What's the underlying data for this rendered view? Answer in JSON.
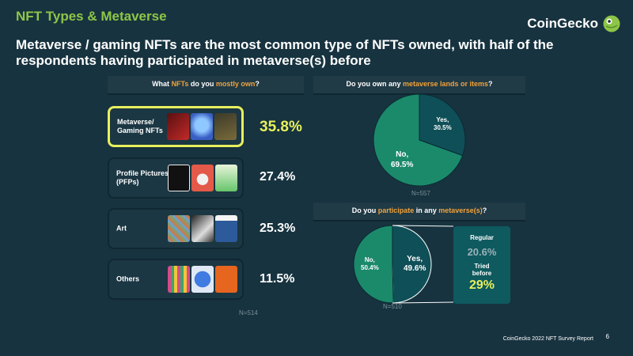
{
  "section_title": "NFT Types & Metaverse",
  "brand": {
    "name": "CoinGecko"
  },
  "headline": "Metaverse / gaming NFTs are the most common type of NFTs owned, with half of the respondents having participated in metaverse(s) before",
  "colors": {
    "accent_green": "#8dc647",
    "highlight_yellow": "#e7f05c",
    "question_highlight": "#f2a23a",
    "pie_green": "#1b8a6b",
    "pie_teal": "#0f4f57"
  },
  "q1": {
    "prefix": "What ",
    "hl1": "NFTs",
    "mid": " do you ",
    "hl2": "mostly own",
    "suffix": "?"
  },
  "q2": {
    "prefix": "Do you own any ",
    "hl1": "metaverse lands or items",
    "suffix": "?"
  },
  "q3": {
    "prefix": "Do you ",
    "hl1": "participate",
    "mid": " in any ",
    "hl2": "metaverse(s)",
    "suffix": "?"
  },
  "footer": "CoinGecko 2022 NFT Survey Report",
  "page_number": "6",
  "chart_data": [
    {
      "type": "bar",
      "title": "What NFTs do you mostly own?",
      "categories": [
        "Metaverse/ Gaming NFTs",
        "Profile Pictures (PFPs)",
        "Art",
        "Others"
      ],
      "values": [
        35.8,
        27.4,
        25.3,
        11.5
      ],
      "value_labels": [
        "35.8%",
        "27.4%",
        "25.3%",
        "11.5%"
      ],
      "sample": "N=514"
    },
    {
      "type": "pie",
      "title": "Do you own any metaverse lands or items?",
      "categories": [
        "Yes,",
        "No,"
      ],
      "values": [
        30.5,
        69.5
      ],
      "value_labels": [
        "30.5%",
        "69.5%"
      ],
      "sample": "N=557"
    },
    {
      "type": "pie",
      "title": "Do you participate in any metaverse(s)?",
      "categories": [
        "No,",
        "Yes,"
      ],
      "values": [
        50.4,
        49.6
      ],
      "value_labels": [
        "50.4%",
        "49.6%"
      ],
      "breakdown": [
        {
          "label": "Regular",
          "value": 20.6,
          "value_label": "20.6%"
        },
        {
          "label": "Tried before",
          "value": 29,
          "value_label": "29%"
        }
      ],
      "sample": "N=510"
    }
  ]
}
